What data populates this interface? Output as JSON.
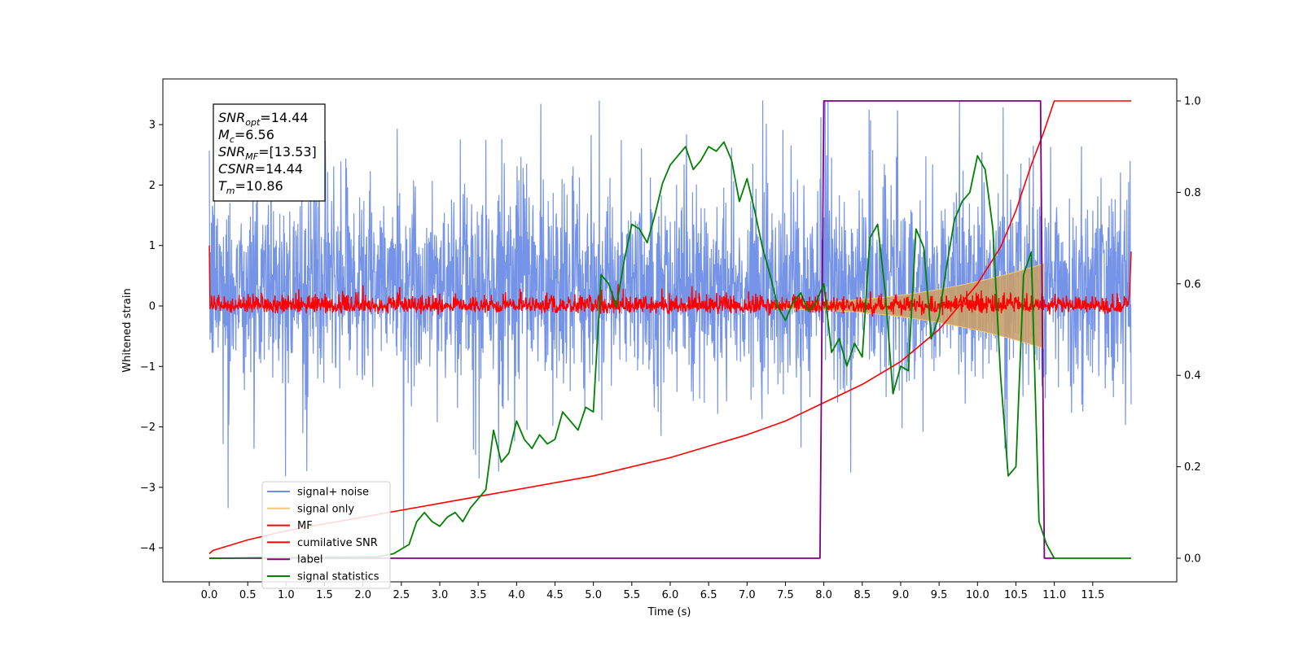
{
  "chart_data": {
    "type": "line",
    "xlabel": "Time (s)",
    "ylabel": "Whitened strain",
    "x_ticks": [
      "0.0",
      "0.5",
      "1.0",
      "1.5",
      "2.0",
      "2.5",
      "3.0",
      "3.5",
      "4.0",
      "4.5",
      "5.0",
      "5.5",
      "6.0",
      "6.5",
      "7.0",
      "7.5",
      "8.0",
      "8.5",
      "9.0",
      "9.5",
      "10.0",
      "10.5",
      "11.0",
      "11.5"
    ],
    "xlim": [
      -0.6,
      12.6
    ],
    "ylim_left": [
      -4.5,
      3.8
    ],
    "ylim_right": [
      -0.05,
      1.05
    ],
    "y_ticks_left": [
      "3",
      "2",
      "1",
      "0",
      "−1",
      "−2",
      "−3",
      "−4"
    ],
    "y_ticks_right": [
      "1.0",
      "0.8",
      "0.6",
      "0.4",
      "0.2",
      "0.0"
    ],
    "grid": false,
    "legend_position": "lower-left",
    "annotation_box": {
      "lines": [
        {
          "name": "SNR",
          "sub": "opt",
          "value": "=14.44"
        },
        {
          "name": "M",
          "sub": "c",
          "value": "=6.56"
        },
        {
          "name": "SNR",
          "sub": "MF",
          "value": "=[13.53]"
        },
        {
          "name": "CSNR",
          "sub": "",
          "value": "=14.44"
        },
        {
          "name": "T",
          "sub": "m",
          "value": "=10.86"
        }
      ]
    },
    "series": [
      {
        "name": "signal+ noise",
        "color": "#6f8ee6",
        "axis": "left",
        "description_values": {
          "x_range": [
            0.0,
            12.0
          ],
          "amplitude_envelope": [
            -2.2,
            2.5
          ]
        }
      },
      {
        "name": "signal only",
        "color": "#f5c77e",
        "axis": "left",
        "chirp": {
          "t_start": 7.3,
          "t_end": 10.86,
          "peak_amplitude": 0.65
        }
      },
      {
        "name": "MF",
        "color": "#ff0000",
        "axis": "left",
        "noise_level": 0.08
      },
      {
        "name": "cumilative SNR",
        "color": "#ff0000",
        "axis": "right",
        "x": [
          0.0,
          0.05,
          0.5,
          1.0,
          2.0,
          3.0,
          4.0,
          5.0,
          6.0,
          7.0,
          7.5,
          8.0,
          8.5,
          9.0,
          9.5,
          10.0,
          10.3,
          10.5,
          10.7,
          10.86,
          11.0,
          12.0
        ],
        "values": [
          0.01,
          0.017,
          0.04,
          0.06,
          0.09,
          0.12,
          0.15,
          0.18,
          0.22,
          0.27,
          0.3,
          0.34,
          0.38,
          0.43,
          0.5,
          0.6,
          0.68,
          0.76,
          0.86,
          0.93,
          1.0,
          1.0
        ]
      },
      {
        "name": "label",
        "color": "#800080",
        "axis": "right",
        "x": [
          0.0,
          7.95,
          8.0,
          10.82,
          10.87,
          11.0
        ],
        "values": [
          0.0,
          0.0,
          1.0,
          1.0,
          0.0,
          0.0
        ]
      },
      {
        "name": "signal statistics",
        "color": "#008000",
        "axis": "right",
        "x": [
          0.0,
          2.2,
          2.4,
          2.6,
          2.7,
          2.8,
          2.9,
          3.0,
          3.1,
          3.2,
          3.3,
          3.4,
          3.5,
          3.6,
          3.7,
          3.8,
          3.9,
          4.0,
          4.1,
          4.2,
          4.3,
          4.4,
          4.5,
          4.6,
          4.7,
          4.8,
          4.9,
          5.0,
          5.1,
          5.2,
          5.3,
          5.4,
          5.5,
          5.6,
          5.7,
          5.8,
          5.9,
          6.0,
          6.1,
          6.2,
          6.3,
          6.4,
          6.5,
          6.6,
          6.7,
          6.8,
          6.9,
          7.0,
          7.1,
          7.2,
          7.3,
          7.4,
          7.5,
          7.6,
          7.7,
          7.8,
          7.9,
          8.0,
          8.1,
          8.2,
          8.3,
          8.4,
          8.5,
          8.6,
          8.7,
          8.8,
          8.9,
          9.0,
          9.1,
          9.2,
          9.3,
          9.4,
          9.5,
          9.6,
          9.7,
          9.8,
          9.9,
          10.0,
          10.1,
          10.2,
          10.3,
          10.4,
          10.5,
          10.6,
          10.7,
          10.8,
          10.9,
          11.0,
          12.0
        ],
        "values": [
          0.0,
          0.003,
          0.01,
          0.03,
          0.08,
          0.1,
          0.08,
          0.07,
          0.09,
          0.1,
          0.08,
          0.11,
          0.13,
          0.15,
          0.28,
          0.21,
          0.23,
          0.3,
          0.26,
          0.24,
          0.27,
          0.25,
          0.26,
          0.32,
          0.3,
          0.28,
          0.33,
          0.32,
          0.62,
          0.6,
          0.55,
          0.65,
          0.73,
          0.72,
          0.69,
          0.75,
          0.82,
          0.86,
          0.88,
          0.9,
          0.85,
          0.87,
          0.9,
          0.89,
          0.91,
          0.87,
          0.78,
          0.83,
          0.76,
          0.68,
          0.62,
          0.55,
          0.52,
          0.56,
          0.58,
          0.54,
          0.56,
          0.6,
          0.45,
          0.48,
          0.42,
          0.47,
          0.44,
          0.7,
          0.73,
          0.58,
          0.36,
          0.42,
          0.41,
          0.72,
          0.68,
          0.48,
          0.53,
          0.64,
          0.74,
          0.78,
          0.8,
          0.88,
          0.85,
          0.72,
          0.4,
          0.18,
          0.2,
          0.62,
          0.67,
          0.08,
          0.03,
          0.0,
          0.0
        ]
      }
    ]
  }
}
